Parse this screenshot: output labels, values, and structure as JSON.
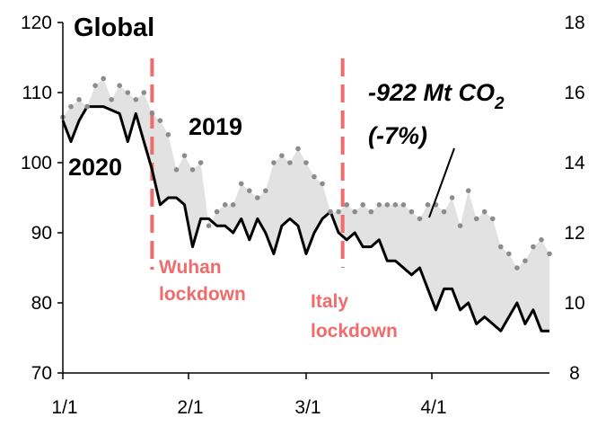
{
  "chart_data": {
    "type": "area",
    "title": "Global",
    "xlabel": "",
    "ylabel": "",
    "x_ticks": [
      {
        "label": "1/1",
        "day": 1
      },
      {
        "label": "2/1",
        "day": 32
      },
      {
        "label": "3/1",
        "day": 61
      },
      {
        "label": "4/1",
        "day": 92
      }
    ],
    "ylim": [
      70,
      120
    ],
    "y_ticks": [
      70,
      80,
      90,
      100,
      110,
      120
    ],
    "y2lim": [
      8,
      18
    ],
    "y2_ticks": [
      8,
      10,
      12,
      14,
      16,
      18
    ],
    "grid": false,
    "series": [
      {
        "name": "2019",
        "style": "dotted",
        "color": "#8c8c8c",
        "x": [
          1,
          3,
          5,
          7,
          9,
          11,
          13,
          15,
          17,
          19,
          21,
          23,
          25,
          27,
          29,
          31,
          33,
          35,
          37,
          39,
          41,
          43,
          45,
          47,
          49,
          51,
          53,
          55,
          57,
          59,
          61,
          63,
          65,
          67,
          69,
          71,
          73,
          75,
          77,
          79,
          81,
          83,
          85,
          87,
          89,
          91,
          93,
          95,
          97,
          99,
          101,
          103,
          105,
          107,
          109,
          111,
          113,
          115,
          117,
          119,
          121
        ],
        "values": [
          106.5,
          108,
          109,
          108,
          111,
          112,
          109,
          111,
          110,
          109,
          110,
          107,
          106,
          104,
          99,
          101,
          99,
          100,
          91,
          93,
          94,
          94,
          97,
          96,
          95,
          96,
          100,
          101,
          100,
          102,
          100,
          98,
          97,
          93,
          93,
          94,
          93,
          94,
          93,
          94,
          94,
          94,
          94,
          93,
          92,
          94,
          94,
          93,
          95,
          91,
          96,
          92,
          93,
          92,
          88,
          87,
          85,
          86,
          88,
          89,
          87
        ]
      },
      {
        "name": "2020",
        "style": "solid",
        "color": "#000000",
        "x": [
          1,
          3,
          5,
          7,
          9,
          11,
          13,
          15,
          17,
          19,
          21,
          23,
          25,
          27,
          29,
          31,
          33,
          35,
          37,
          39,
          41,
          43,
          45,
          47,
          49,
          51,
          53,
          55,
          57,
          59,
          61,
          63,
          65,
          67,
          69,
          71,
          73,
          75,
          77,
          79,
          81,
          83,
          85,
          87,
          89,
          91,
          93,
          95,
          97,
          99,
          101,
          103,
          105,
          107,
          109,
          111,
          113,
          115,
          117,
          119,
          121
        ],
        "values": [
          106,
          103,
          106,
          108,
          108,
          108,
          107.5,
          107,
          103,
          107,
          103,
          99,
          94,
          95,
          95,
          94,
          88,
          92,
          92,
          91,
          91,
          90,
          92,
          89,
          92,
          90,
          87,
          91,
          92,
          91,
          87,
          90,
          92,
          93,
          90,
          89,
          90,
          88,
          88,
          89,
          86,
          86,
          85,
          84,
          85,
          82,
          79,
          82,
          82,
          79,
          80,
          77,
          78,
          77,
          76,
          78,
          80,
          77,
          79,
          76,
          76
        ]
      }
    ],
    "events": [
      {
        "day": 23,
        "label_lines": [
          "Wuhan",
          "lockdown"
        ]
      },
      {
        "day": 70,
        "label_lines": [
          "Italy",
          "lockdown"
        ]
      }
    ],
    "fill_between": {
      "color": "#e2e2e2"
    },
    "annotation": {
      "text": "-922 Mt CO",
      "subscript": "2",
      "line2": "(-7%)"
    },
    "series_labels": {
      "s2019": "2019",
      "s2020": "2020"
    },
    "colors": {
      "event": "#f06b6b",
      "fill": "#e2e2e2",
      "dots": "#8c8c8c",
      "line": "#000000"
    }
  }
}
